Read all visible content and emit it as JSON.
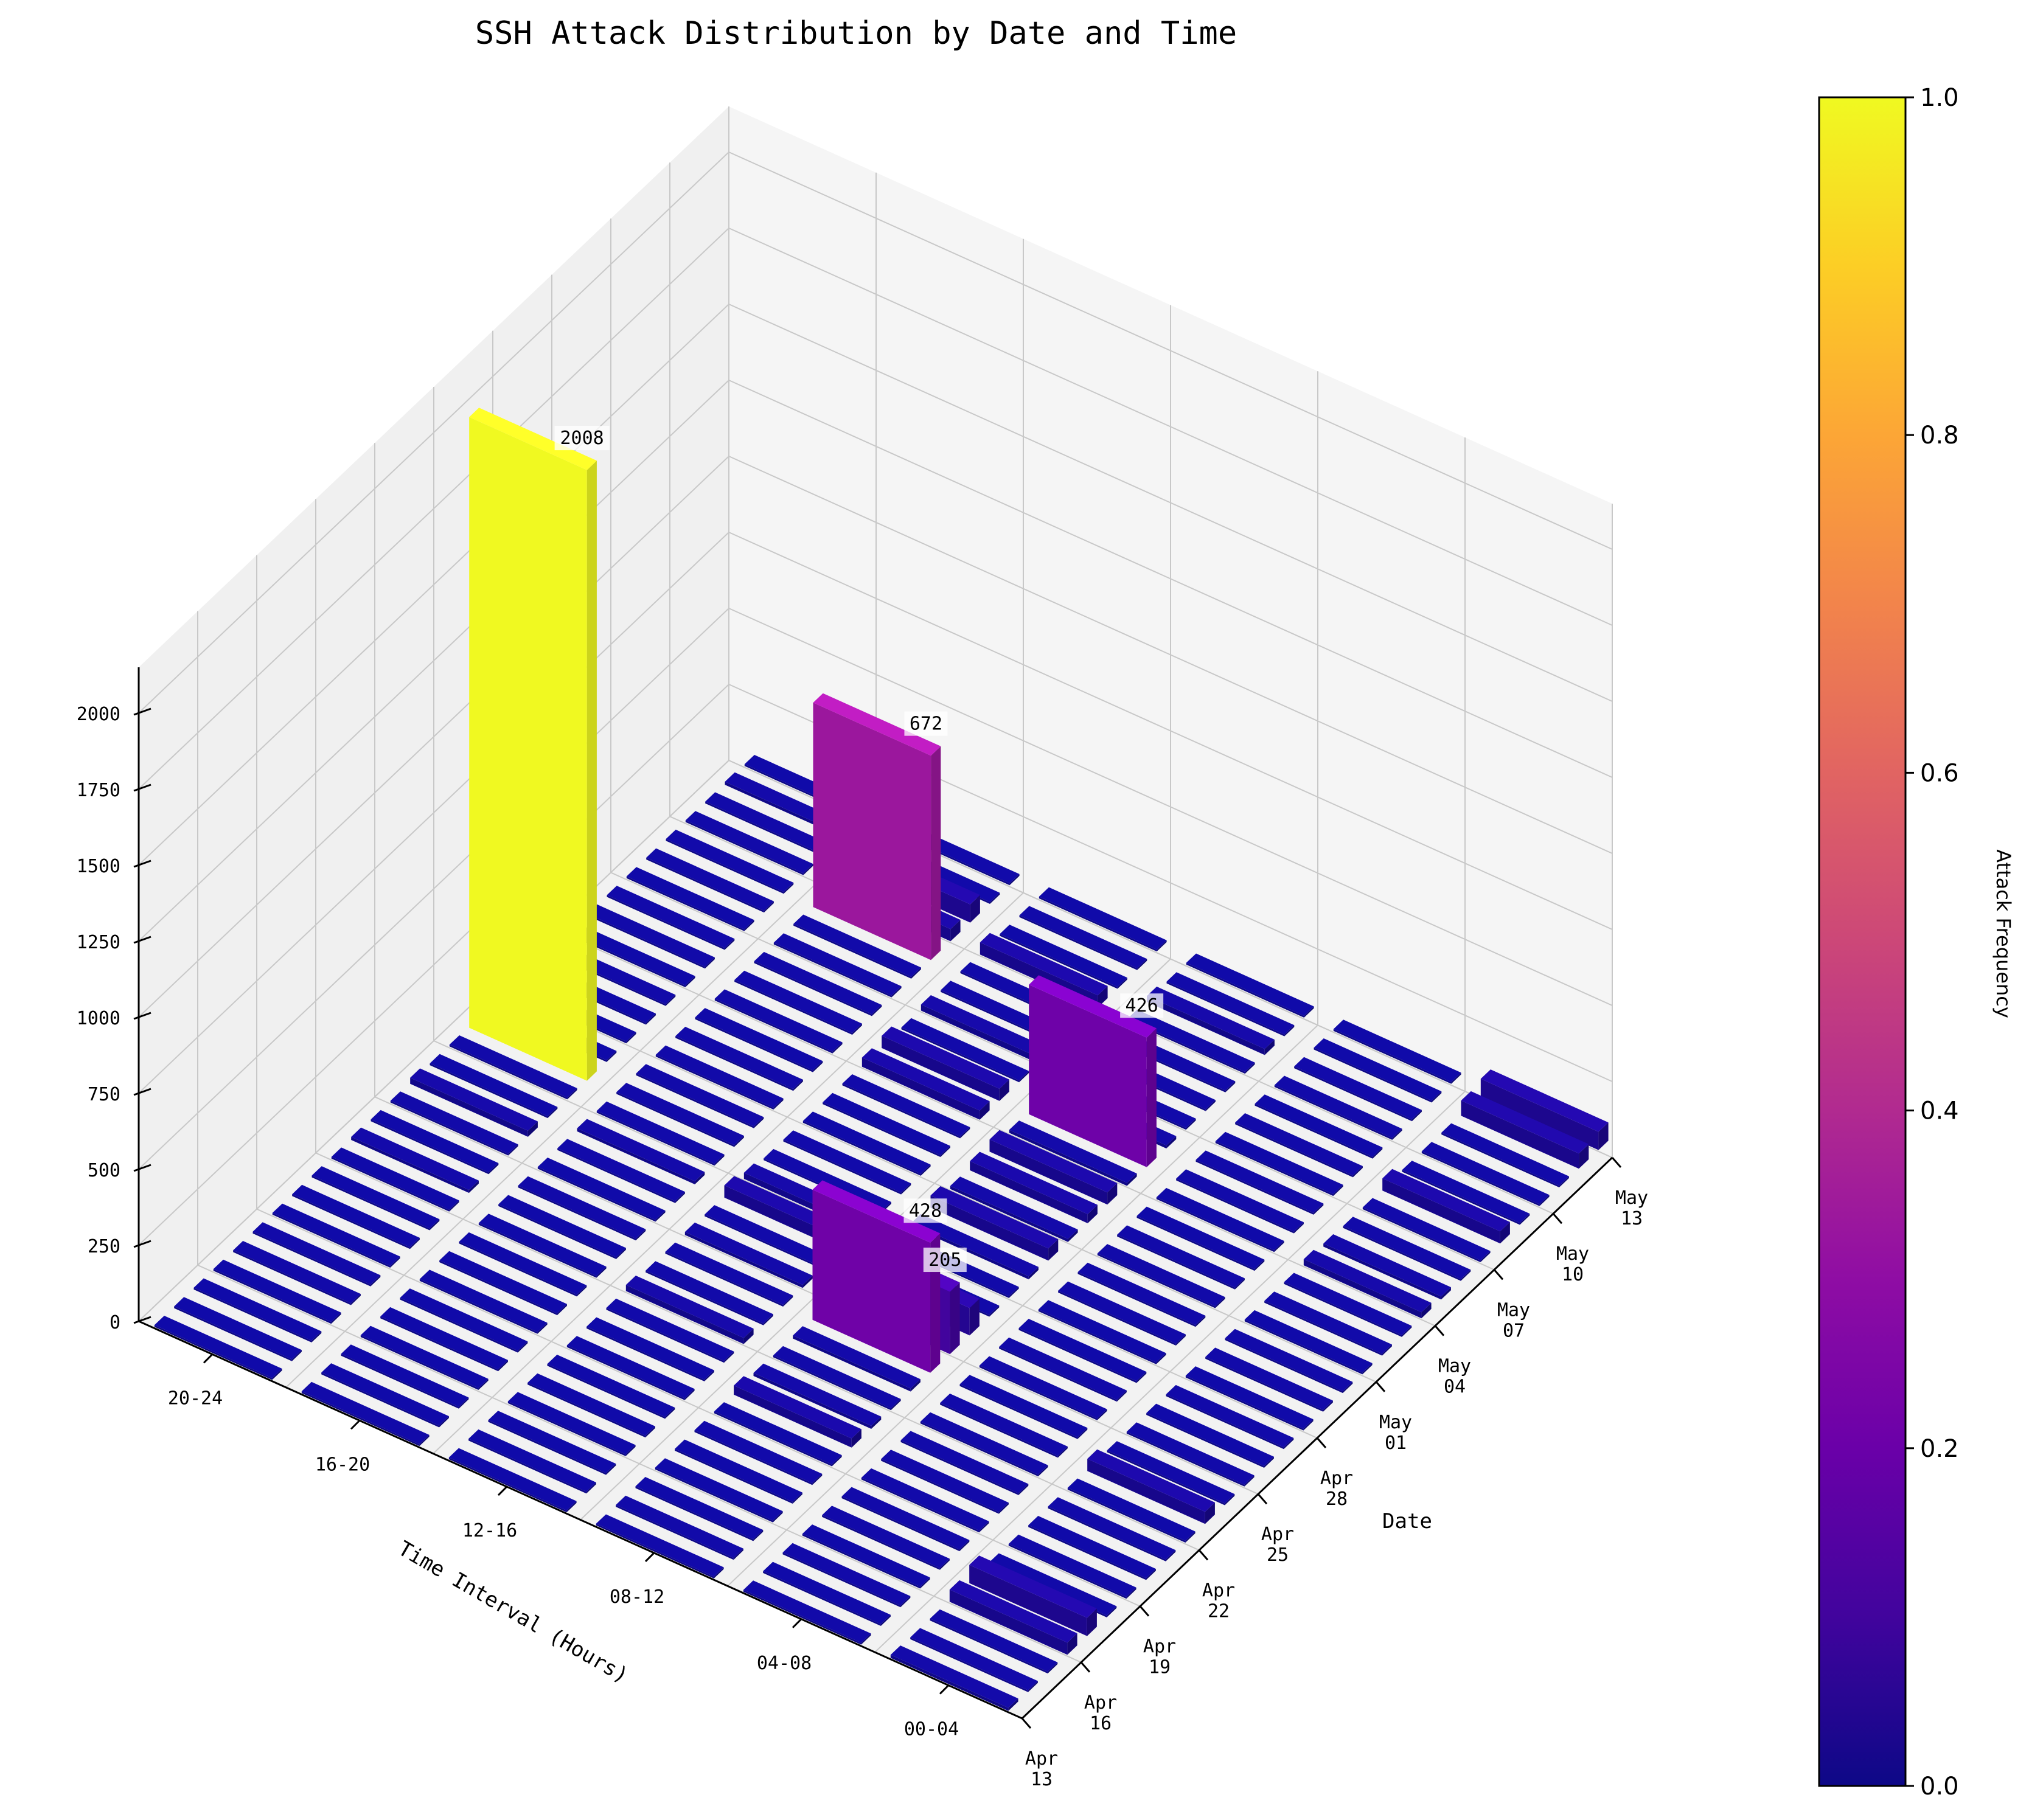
{
  "chart_data": {
    "type": "bar3d",
    "title": "SSH Attack Distribution by Date and Time",
    "xlabel": "Time Interval (Hours)",
    "ylabel": "Date",
    "zlabel": "",
    "colorbar_label": "Attack Frequency",
    "colormap": "plasma",
    "zlim": [
      0,
      2008
    ],
    "z_ticks": [
      "0",
      "250",
      "500",
      "750",
      "1000",
      "1250",
      "1500",
      "1750",
      "2000"
    ],
    "colorbar_ticks": [
      "0.0",
      "0.2",
      "0.4",
      "0.6",
      "0.8",
      "1.0"
    ],
    "time_ticks": [
      "00-04",
      "04-08",
      "08-12",
      "12-16",
      "16-20",
      "20-24"
    ],
    "date_ticks": [
      {
        "line1": "Apr",
        "line2": "13"
      },
      {
        "line1": "Apr",
        "line2": "16"
      },
      {
        "line1": "Apr",
        "line2": "19"
      },
      {
        "line1": "Apr",
        "line2": "22"
      },
      {
        "line1": "Apr",
        "line2": "25"
      },
      {
        "line1": "Apr",
        "line2": "28"
      },
      {
        "line1": "May",
        "line2": "01"
      },
      {
        "line1": "May",
        "line2": "04"
      },
      {
        "line1": "May",
        "line2": "07"
      },
      {
        "line1": "May",
        "line2": "10"
      },
      {
        "line1": "May",
        "line2": "13"
      }
    ],
    "dates": [
      "2024-04-13",
      "2024-04-14",
      "2024-04-15",
      "2024-04-16",
      "2024-04-17",
      "2024-04-18",
      "2024-04-19",
      "2024-04-20",
      "2024-04-21",
      "2024-04-22",
      "2024-04-23",
      "2024-04-24",
      "2024-04-25",
      "2024-04-26",
      "2024-04-27",
      "2024-04-28",
      "2024-04-29",
      "2024-04-30",
      "2024-05-01",
      "2024-05-02",
      "2024-05-03",
      "2024-05-04",
      "2024-05-05",
      "2024-05-06",
      "2024-05-07",
      "2024-05-08",
      "2024-05-09",
      "2024-05-10",
      "2024-05-11",
      "2024-05-12",
      "2024-05-13"
    ],
    "values": [
      {
        "date": "2024-04-13",
        "values": [
          10,
          3,
          5,
          0,
          3,
          0
        ]
      },
      {
        "date": "2024-04-14",
        "values": [
          6,
          0,
          4,
          0,
          0,
          0
        ]
      },
      {
        "date": "2024-04-15",
        "values": [
          4,
          2,
          0,
          0,
          0,
          0
        ]
      },
      {
        "date": "2024-04-16",
        "values": [
          40,
          0,
          0,
          0,
          0,
          0
        ]
      },
      {
        "date": "2024-04-17",
        "values": [
          60,
          3,
          0,
          0,
          0,
          2
        ]
      },
      {
        "date": "2024-04-18",
        "values": [
          3,
          2,
          5,
          0,
          0,
          3
        ]
      },
      {
        "date": "2024-04-19",
        "values": [
          2,
          5,
          0,
          0,
          0,
          0
        ]
      },
      {
        "date": "2024-04-20",
        "values": [
          0,
          2,
          30,
          0,
          0,
          0
        ]
      },
      {
        "date": "2024-04-21",
        "values": [
          2,
          2,
          10,
          5,
          0,
          0
        ]
      },
      {
        "date": "2024-04-22",
        "values": [
          0,
          2,
          2,
          20,
          0,
          0
        ]
      },
      {
        "date": "2024-04-23",
        "values": [
          40,
          4,
          10,
          3,
          0,
          10
        ]
      },
      {
        "date": "2024-04-24",
        "values": [
          2,
          0,
          428,
          5,
          2,
          0
        ]
      },
      {
        "date": "2024-04-25",
        "values": [
          3,
          2,
          205,
          10,
          0,
          2
        ]
      },
      {
        "date": "2024-04-26",
        "values": [
          0,
          3,
          90,
          5,
          5,
          20
        ]
      },
      {
        "date": "2024-04-27",
        "values": [
          2,
          0,
          3,
          40,
          10,
          0
        ]
      },
      {
        "date": "2024-04-28",
        "values": [
          0,
          0,
          2,
          20,
          5,
          2
        ]
      },
      {
        "date": "2024-04-29",
        "values": [
          3,
          2,
          10,
          5,
          2,
          2008
        ]
      },
      {
        "date": "2024-04-30",
        "values": [
          2,
          2,
          40,
          5,
          4,
          0
        ]
      },
      {
        "date": "2024-05-01",
        "values": [
          0,
          2,
          10,
          0,
          2,
          0
        ]
      },
      {
        "date": "2024-05-02",
        "values": [
          2,
          3,
          30,
          0,
          3,
          0
        ]
      },
      {
        "date": "2024-05-03",
        "values": [
          5,
          0,
          40,
          3,
          0,
          2
        ]
      },
      {
        "date": "2024-05-04",
        "values": [
          20,
          0,
          10,
          30,
          2,
          0
        ]
      },
      {
        "date": "2024-05-05",
        "values": [
          10,
          3,
          426,
          40,
          5,
          2
        ]
      },
      {
        "date": "2024-05-06",
        "values": [
          3,
          2,
          10,
          5,
          2,
          5
        ]
      },
      {
        "date": "2024-05-07",
        "values": [
          5,
          0,
          5,
          20,
          3,
          0
        ]
      },
      {
        "date": "2024-05-08",
        "values": [
          40,
          2,
          2,
          3,
          2,
          3
        ]
      },
      {
        "date": "2024-05-09",
        "values": [
          5,
          0,
          4,
          2,
          672,
          5
        ]
      },
      {
        "date": "2024-05-10",
        "values": [
          2,
          2,
          2,
          40,
          40,
          2
        ]
      },
      {
        "date": "2024-05-11",
        "values": [
          3,
          5,
          20,
          0,
          60,
          3
        ]
      },
      {
        "date": "2024-05-12",
        "values": [
          50,
          0,
          2,
          2,
          5,
          10
        ]
      },
      {
        "date": "2024-05-13",
        "values": [
          60,
          0,
          0,
          0,
          5,
          0
        ]
      }
    ],
    "annotations": [
      "2008",
      "672",
      "426",
      "428",
      "205"
    ],
    "grid": true,
    "legend": "none"
  }
}
